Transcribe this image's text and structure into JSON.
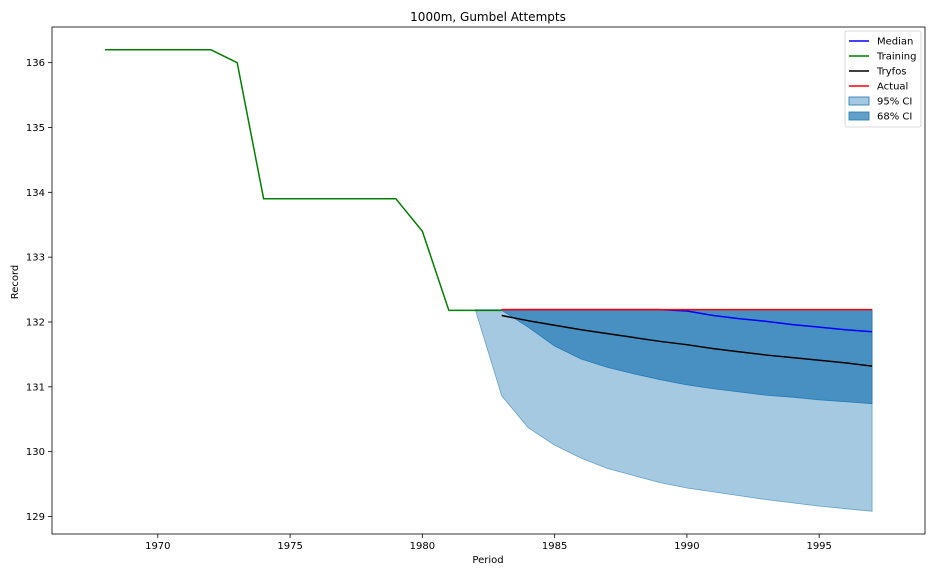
{
  "chart_data": {
    "type": "line",
    "title": "1000m, Gumbel Attempts",
    "xlabel": "Period",
    "ylabel": "Record",
    "xlim": [
      1966.0,
      1999.0
    ],
    "ylim": [
      128.73,
      136.55
    ],
    "xticks": [
      1970,
      1975,
      1980,
      1985,
      1990,
      1995
    ],
    "yticks": [
      129,
      130,
      131,
      132,
      133,
      134,
      135,
      136
    ],
    "legend_position": "top-right",
    "series": [
      {
        "name": "Median",
        "color": "#0000ff",
        "x": [
          1983,
          1984,
          1985,
          1986,
          1987,
          1988,
          1989,
          1990,
          1991,
          1992,
          1993,
          1994,
          1995,
          1996,
          1997
        ],
        "y": [
          132.19,
          132.19,
          132.19,
          132.19,
          132.19,
          132.19,
          132.19,
          132.17,
          132.1,
          132.05,
          132.01,
          131.96,
          131.92,
          131.88,
          131.85
        ]
      },
      {
        "name": "Training",
        "color": "#008000",
        "x": [
          1968,
          1969,
          1970,
          1971,
          1972,
          1973,
          1974,
          1975,
          1976,
          1977,
          1978,
          1979,
          1980,
          1981,
          1982,
          1983
        ],
        "y": [
          136.2,
          136.2,
          136.2,
          136.2,
          136.2,
          136.0,
          133.9,
          133.9,
          133.9,
          133.9,
          133.9,
          133.9,
          133.4,
          132.18,
          132.18,
          132.18
        ]
      },
      {
        "name": "Tryfos",
        "color": "#000000",
        "x": [
          1983,
          1984,
          1985,
          1986,
          1987,
          1988,
          1989,
          1990,
          1991,
          1992,
          1993,
          1994,
          1995,
          1996,
          1997
        ],
        "y": [
          132.1,
          132.02,
          131.95,
          131.88,
          131.82,
          131.76,
          131.7,
          131.65,
          131.59,
          131.54,
          131.49,
          131.45,
          131.41,
          131.37,
          131.32
        ]
      },
      {
        "name": "Actual",
        "color": "#ff0000",
        "x": [
          1983,
          1984,
          1985,
          1986,
          1987,
          1988,
          1989,
          1990,
          1991,
          1992,
          1993,
          1994,
          1995,
          1996,
          1997
        ],
        "y": [
          132.19,
          132.19,
          132.19,
          132.19,
          132.19,
          132.19,
          132.19,
          132.19,
          132.19,
          132.19,
          132.19,
          132.19,
          132.19,
          132.19,
          132.19
        ]
      }
    ],
    "bands": [
      {
        "name": "95% CI",
        "color": "#1f77b4",
        "opacity": 0.4,
        "x": [
          1982,
          1983,
          1984,
          1985,
          1986,
          1987,
          1988,
          1989,
          1990,
          1991,
          1992,
          1993,
          1994,
          1995,
          1996,
          1997
        ],
        "upper": [
          132.19,
          132.19,
          132.19,
          132.19,
          132.19,
          132.19,
          132.19,
          132.19,
          132.19,
          132.19,
          132.19,
          132.19,
          132.19,
          132.19,
          132.19,
          132.19
        ],
        "lower": [
          132.19,
          130.86,
          130.37,
          130.1,
          129.9,
          129.74,
          129.63,
          129.52,
          129.44,
          129.38,
          129.32,
          129.26,
          129.21,
          129.16,
          129.12,
          129.08
        ]
      },
      {
        "name": "68% CI",
        "color": "#1f77b4",
        "opacity": 0.7,
        "x": [
          1983,
          1984,
          1985,
          1986,
          1987,
          1988,
          1989,
          1990,
          1991,
          1992,
          1993,
          1994,
          1995,
          1996,
          1997
        ],
        "upper": [
          132.19,
          132.19,
          132.19,
          132.19,
          132.19,
          132.19,
          132.19,
          132.19,
          132.19,
          132.19,
          132.19,
          132.19,
          132.19,
          132.19,
          132.19
        ],
        "lower": [
          132.18,
          131.92,
          131.63,
          131.43,
          131.3,
          131.2,
          131.11,
          131.03,
          130.97,
          130.92,
          130.87,
          130.84,
          130.8,
          130.77,
          130.74
        ]
      }
    ]
  }
}
